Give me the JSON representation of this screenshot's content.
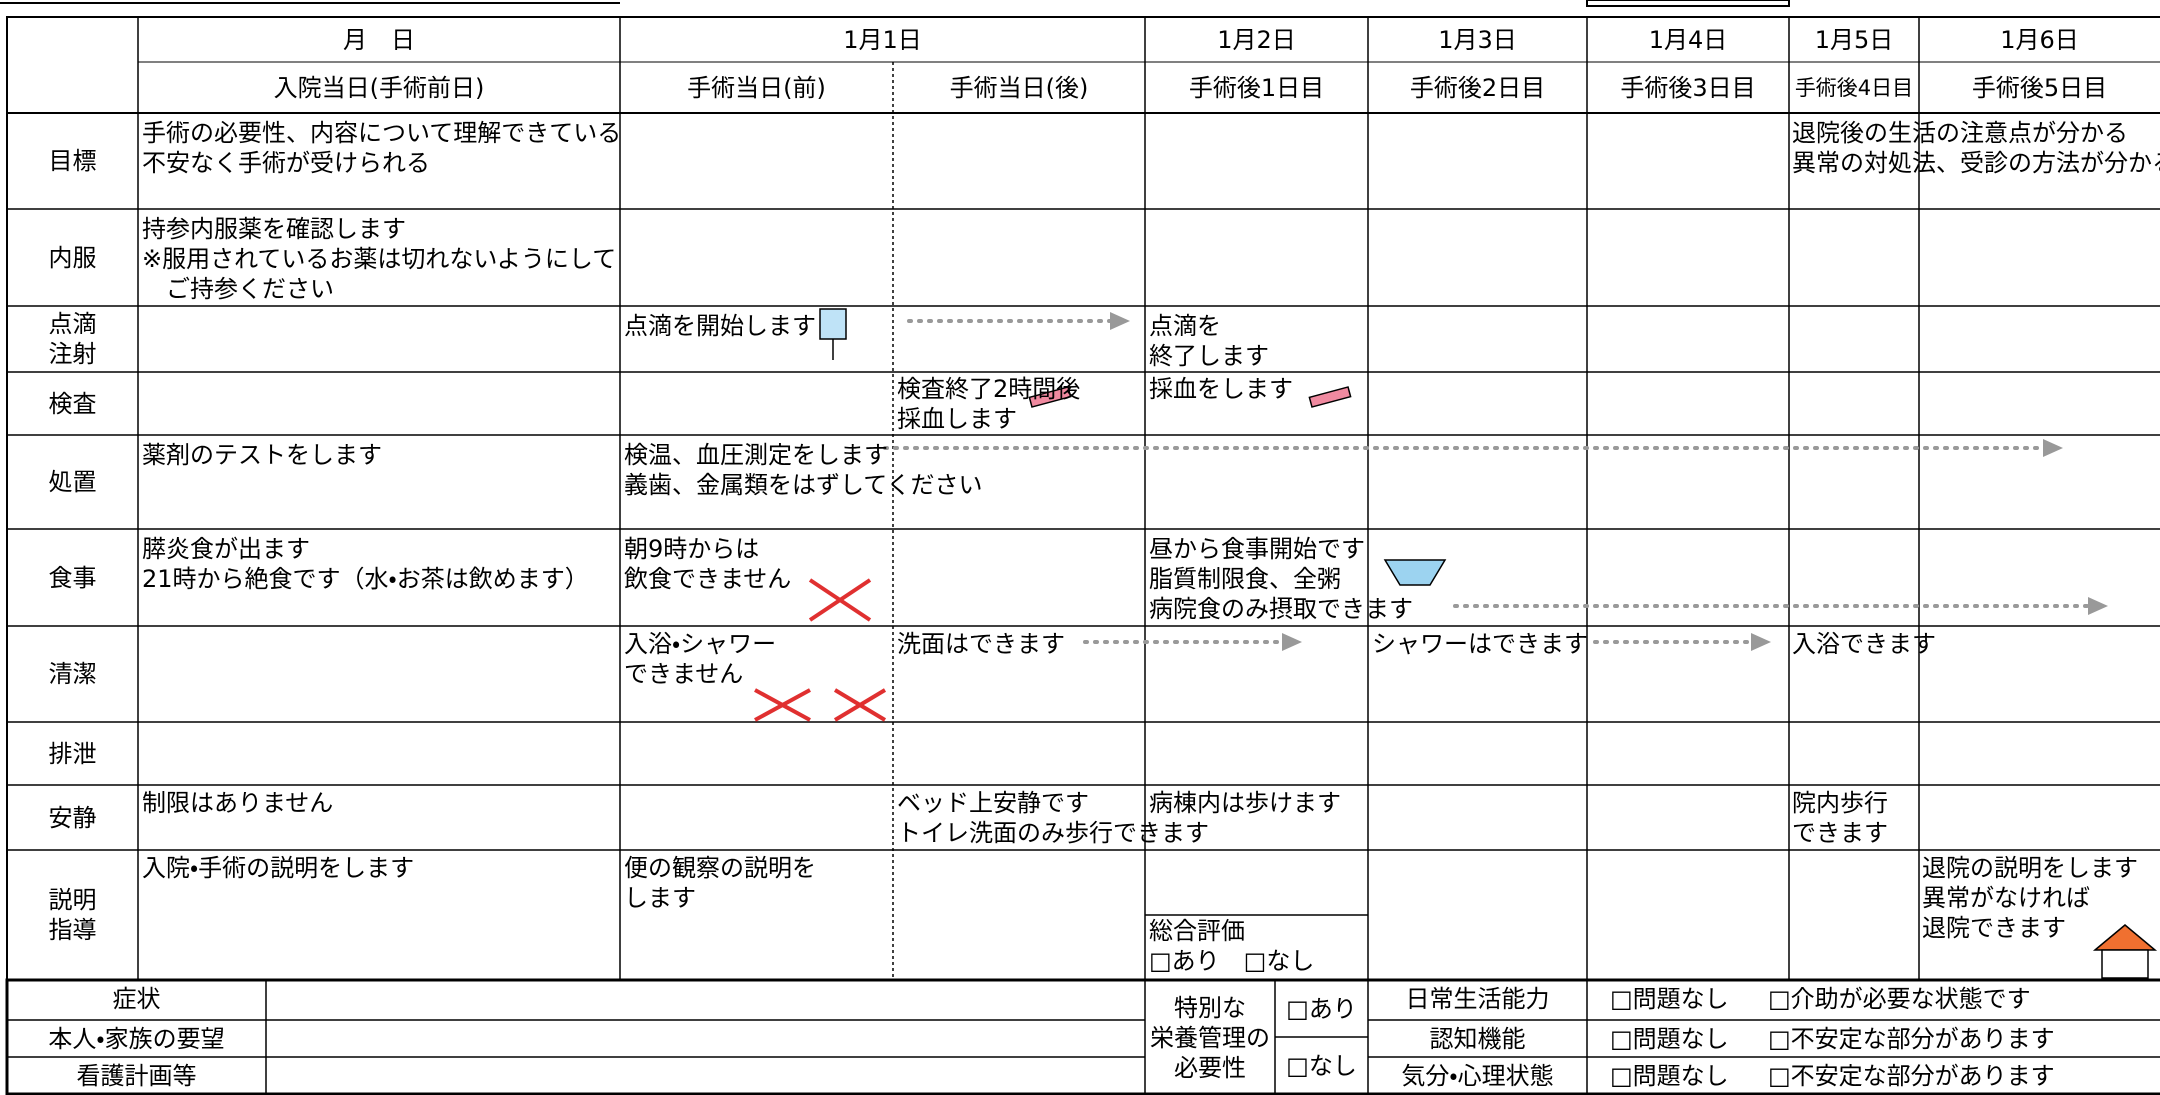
{
  "header": {
    "corner_label": "月　日",
    "dates": [
      "1月1日",
      "1月2日",
      "1月3日",
      "1月4日",
      "1月5日",
      "1月6日"
    ],
    "days": [
      "入院当日(手術前日)",
      "手術当日(前)",
      "手術当日(後)",
      "手術後1日目",
      "手術後2日目",
      "手術後3日目",
      "手術後4日目",
      "手術後5日目"
    ]
  },
  "rows": [
    {
      "label": [
        "目標"
      ],
      "cells": [
        [
          "手術の必要性、内容について理解できている",
          "不安なく手術が受けられる"
        ],
        [
          "退院後の生活の注意点が分かる",
          "異常の対処法、受診の方法が分かる"
        ]
      ]
    },
    {
      "label": [
        "内服"
      ],
      "cells": [
        [
          "持参内服薬を確認します",
          "※服用されているお薬は切れないようにして",
          "　ご持参ください"
        ]
      ]
    },
    {
      "label": [
        "点滴",
        "注射"
      ],
      "cells": [
        [
          "点滴を開始します"
        ],
        [
          "点滴を",
          "終了します"
        ]
      ]
    },
    {
      "label": [
        "検査"
      ],
      "cells": [
        [
          "検査終了2時間後",
          "採血します"
        ],
        [
          "採血をします"
        ]
      ]
    },
    {
      "label": [
        "処置"
      ],
      "cells": [
        [
          "薬剤のテストをします"
        ],
        [
          "検温、血圧測定をします",
          "義歯、金属類をはずしてください"
        ]
      ]
    },
    {
      "label": [
        "食事"
      ],
      "cells": [
        [
          "膵炎食が出ます",
          "21時から絶食です（水・お茶は飲めます）"
        ],
        [
          "朝9時からは",
          "飲食できません"
        ],
        [
          "昼から食事開始です",
          "脂質制限食、全粥",
          "病院食のみ摂取できます"
        ]
      ]
    },
    {
      "label": [
        "清潔"
      ],
      "cells": [
        [
          "入浴・シャワー",
          "できません"
        ],
        [
          "洗面はできます"
        ],
        [
          "シャワーはできます"
        ],
        [
          "入浴できます"
        ]
      ]
    },
    {
      "label": [
        "排泄"
      ],
      "cells": []
    },
    {
      "label": [
        "安静"
      ],
      "cells": [
        [
          "制限はありません"
        ],
        [
          "ベッド上安静です",
          "トイレ洗面のみ歩行できます"
        ],
        [
          "病棟内は歩けます"
        ],
        [
          "院内歩行",
          "できます"
        ]
      ]
    },
    {
      "label": [
        "説明",
        "指導"
      ],
      "cells": [
        [
          "入院・手術の説明をします"
        ],
        [
          "便の観察の説明を",
          "します"
        ],
        [
          "総合評価",
          "□あり　□なし"
        ],
        [
          "退院の説明をします",
          "異常がなければ",
          "退院できます"
        ]
      ]
    }
  ],
  "footer": {
    "notes": [
      "症状",
      "本人・家族の要望",
      "看護計画等"
    ],
    "nutrition": {
      "label": [
        "特別な",
        "栄養管理の",
        "必要性"
      ],
      "options": [
        "□あり",
        "□なし"
      ]
    },
    "assessments": [
      {
        "label": "日常生活能力",
        "ok": "□問題なし",
        "ng": "□介助が必要な状態です"
      },
      {
        "label": "認知機能",
        "ok": "□問題なし",
        "ng": "□不安定な部分があります"
      },
      {
        "label": "気分・心理状態",
        "ok": "□問題なし",
        "ng": "□不安定な部分があります"
      }
    ]
  }
}
